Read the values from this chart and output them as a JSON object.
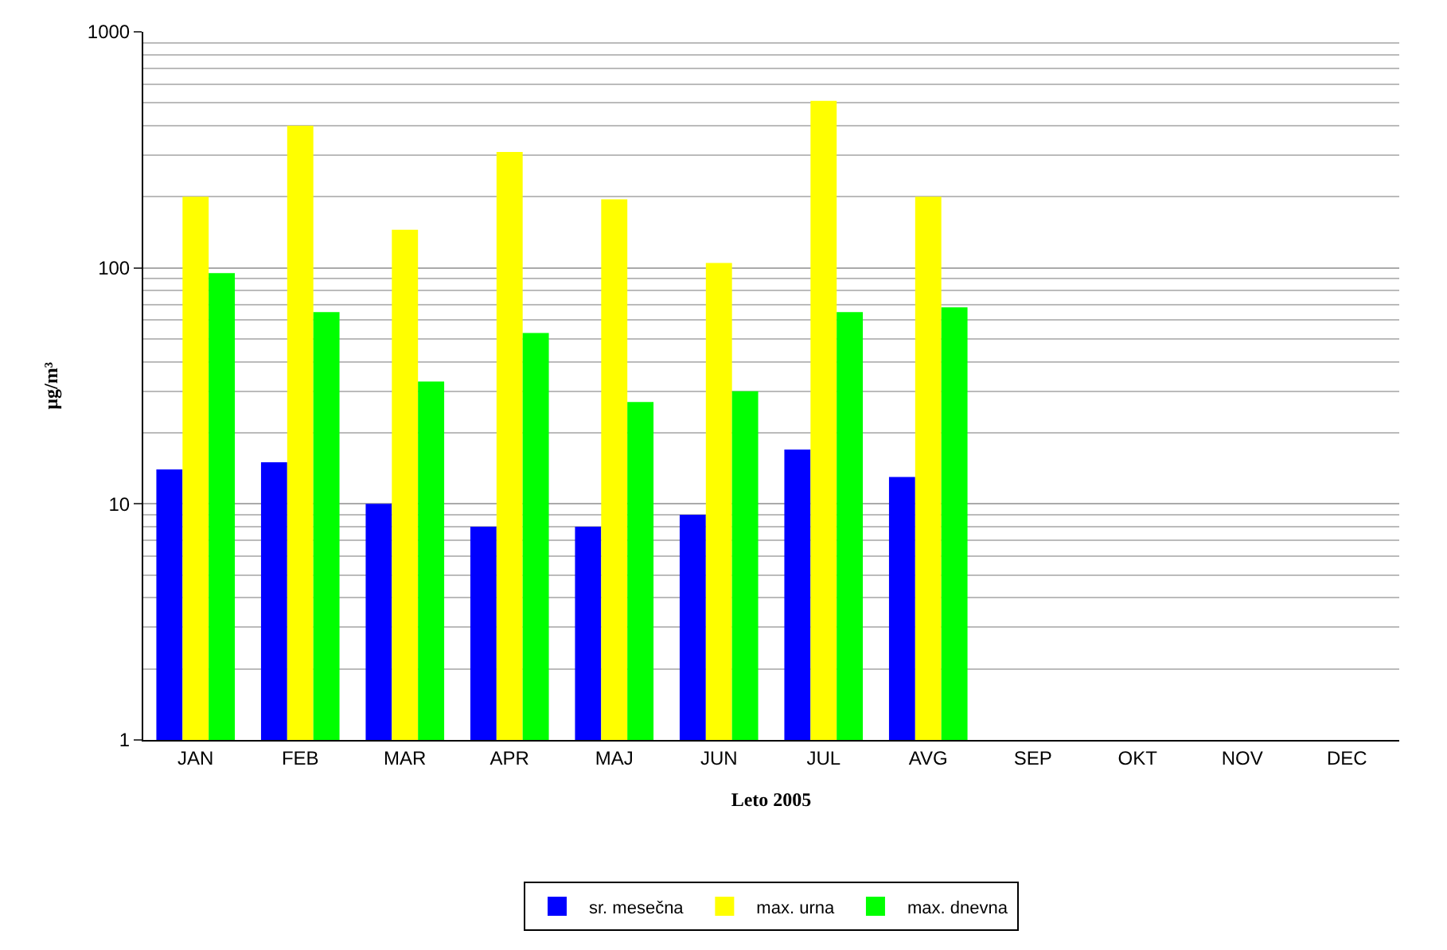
{
  "chart_data": {
    "type": "bar",
    "xlabel": "Leto 2005",
    "ylabel": "µg/m³",
    "log": true,
    "ylim": [
      1,
      1000
    ],
    "yticks": [
      1,
      10,
      100,
      1000
    ],
    "grid": "y",
    "legend": "bottom",
    "categories": [
      "JAN",
      "FEB",
      "MAR",
      "APR",
      "MAJ",
      "JUN",
      "JUL",
      "AVG",
      "SEP",
      "OKT",
      "NOV",
      "DEC"
    ],
    "series": [
      {
        "name": "sr. mesečna",
        "color": "#0000ff",
        "values": [
          14,
          15,
          10,
          8,
          8,
          9,
          17,
          13,
          null,
          null,
          null,
          null
        ]
      },
      {
        "name": "max. urna",
        "color": "#ffff00",
        "values": [
          200,
          400,
          145,
          310,
          195,
          105,
          510,
          200,
          null,
          null,
          null,
          null
        ]
      },
      {
        "name": "max. dnevna",
        "color": "#00ff00",
        "values": [
          95,
          65,
          33,
          53,
          27,
          30,
          65,
          68,
          null,
          null,
          null,
          null
        ]
      }
    ]
  }
}
